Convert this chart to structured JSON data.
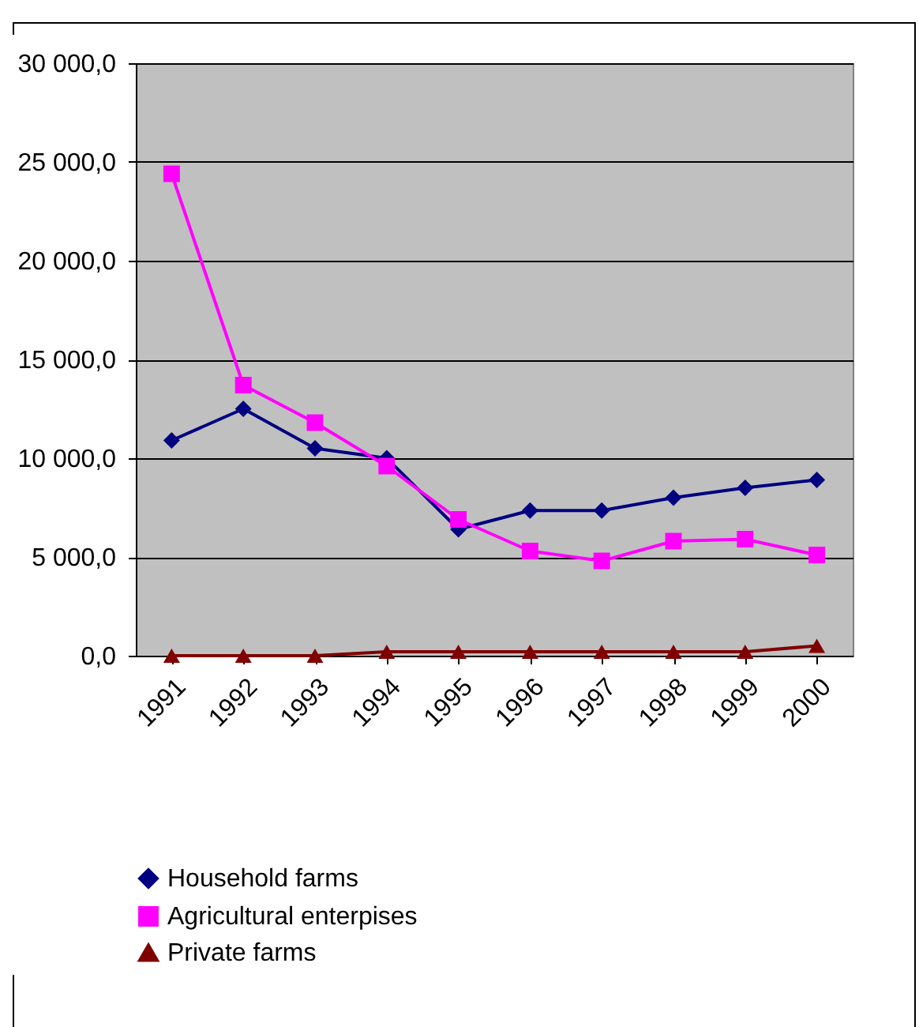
{
  "chart_data": {
    "type": "line",
    "categories": [
      "1991",
      "1992",
      "1993",
      "1994",
      "1995",
      "1996",
      "1997",
      "1998",
      "1999",
      "2000"
    ],
    "series": [
      {
        "name": "Household farms",
        "color": "#000080",
        "marker": "diamond",
        "values": [
          10900,
          12500,
          10500,
          10000,
          6400,
          7350,
          7350,
          8000,
          8500,
          8900
        ]
      },
      {
        "name": "Agricultural enterpises",
        "color": "#ff00ff",
        "marker": "square",
        "values": [
          24400,
          13700,
          11800,
          9600,
          6900,
          5300,
          4800,
          5800,
          5900,
          5100
        ]
      },
      {
        "name": "Private farms",
        "color": "#800000",
        "marker": "triangle",
        "values": [
          0,
          0,
          0,
          200,
          200,
          200,
          200,
          200,
          200,
          500
        ]
      }
    ],
    "ylim": [
      0,
      30000
    ],
    "yticks": [
      {
        "value": 0,
        "label": "0,0"
      },
      {
        "value": 5000,
        "label": "5 000,0"
      },
      {
        "value": 10000,
        "label": "10 000,0"
      },
      {
        "value": 15000,
        "label": "15 000,0"
      },
      {
        "value": 20000,
        "label": "20 000,0"
      },
      {
        "value": 25000,
        "label": "25 000,0"
      },
      {
        "value": 30000,
        "label": "30 000,0"
      }
    ],
    "grid": "y",
    "legend": "bottom"
  }
}
